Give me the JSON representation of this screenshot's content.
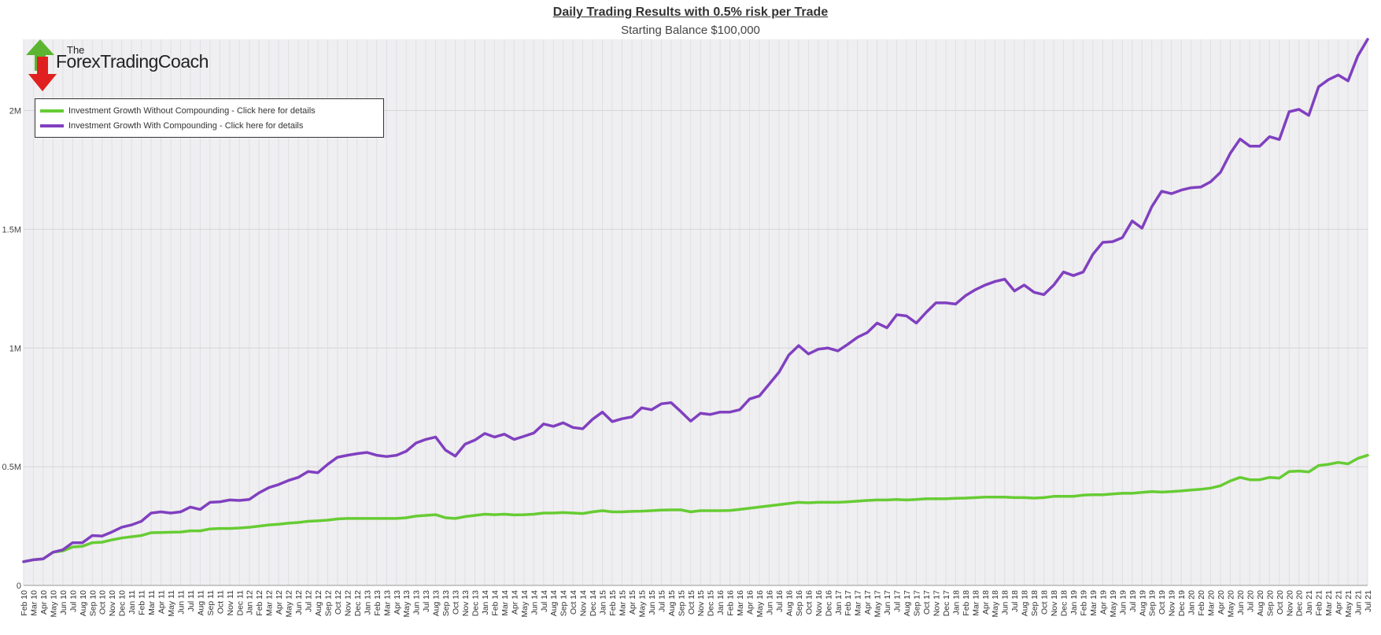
{
  "title": "Daily Trading Results with 0.5% risk per Trade",
  "subtitle": "Starting Balance $100,000",
  "logo": {
    "top_text": "The",
    "name": "ForexTradingCoach",
    "icon": "up-down-arrows-icon",
    "colors": {
      "up": "#5bb531",
      "down": "#e02020"
    }
  },
  "colors": {
    "plot_bg": "#efeef0",
    "grid": "#e0dfe2",
    "no_compound": "#66cc33",
    "compound": "#8040c0"
  },
  "chart_data": {
    "type": "line",
    "title": "Daily Trading Results with 0.5% risk per Trade",
    "subtitle": "Starting Balance $100,000",
    "xlabel": "",
    "ylabel": "",
    "ylim": [
      0,
      2300000
    ],
    "yticks": [
      {
        "value": 0,
        "label": "0"
      },
      {
        "value": 500000,
        "label": "0.5M"
      },
      {
        "value": 1000000,
        "label": "1M"
      },
      {
        "value": 1500000,
        "label": "1.5M"
      },
      {
        "value": 2000000,
        "label": "2M"
      }
    ],
    "grid": true,
    "legend_position": "top-left",
    "categories": [
      "Feb 10",
      "Mar 10",
      "Apr 10",
      "May 10",
      "Jun 10",
      "Jul 10",
      "Aug 10",
      "Sep 10",
      "Oct 10",
      "Nov 10",
      "Dec 10",
      "Jan 11",
      "Feb 11",
      "Mar 11",
      "Apr 11",
      "May 11",
      "Jun 11",
      "Jul 11",
      "Aug 11",
      "Sep 11",
      "Oct 11",
      "Nov 11",
      "Dec 11",
      "Jan 12",
      "Feb 12",
      "Mar 12",
      "Apr 12",
      "May 12",
      "Jun 12",
      "Jul 12",
      "Aug 12",
      "Sep 12",
      "Oct 12",
      "Nov 12",
      "Dec 12",
      "Jan 13",
      "Feb 13",
      "Mar 13",
      "Apr 13",
      "May 13",
      "Jun 13",
      "Jul 13",
      "Aug 13",
      "Sep 13",
      "Oct 13",
      "Nov 13",
      "Dec 13",
      "Jan 14",
      "Feb 14",
      "Mar 14",
      "Apr 14",
      "May 14",
      "Jun 14",
      "Jul 14",
      "Aug 14",
      "Sep 14",
      "Oct 14",
      "Nov 14",
      "Dec 14",
      "Jan 15",
      "Feb 15",
      "Mar 15",
      "Apr 15",
      "May 15",
      "Jun 15",
      "Jul 15",
      "Aug 15",
      "Sep 15",
      "Oct 15",
      "Nov 15",
      "Dec 15",
      "Jan 16",
      "Feb 16",
      "Mar 16",
      "Apr 16",
      "May 16",
      "Jun 16",
      "Jul 16",
      "Aug 16",
      "Sep 16",
      "Oct 16",
      "Nov 16",
      "Dec 16",
      "Jan 17",
      "Feb 17",
      "Mar 17",
      "Apr 17",
      "May 17",
      "Jun 17",
      "Jul 17",
      "Aug 17",
      "Sep 17",
      "Oct 17",
      "Nov 17",
      "Dec 17",
      "Jan 18",
      "Feb 18",
      "Mar 18",
      "Apr 18",
      "May 18",
      "Jun 18",
      "Jul 18",
      "Aug 18",
      "Sep 18",
      "Oct 18",
      "Nov 18",
      "Dec 18",
      "Jan 19",
      "Feb 19",
      "Mar 19",
      "Apr 19",
      "May 19",
      "Jun 19",
      "Jul 19",
      "Aug 19",
      "Sep 19",
      "Oct 19",
      "Nov 19",
      "Dec 19",
      "Jan 20",
      "Feb 20",
      "Mar 20",
      "Apr 20",
      "May 20",
      "Jun 20",
      "Jul 20",
      "Aug 20",
      "Sep 20",
      "Oct 20",
      "Nov 20",
      "Dec 20",
      "Jan 21",
      "Feb 21",
      "Mar 21",
      "Apr 21",
      "May 21",
      "Jun 21",
      "Jul 21"
    ],
    "series": [
      {
        "name": "Investment Growth Without Compounding - Click here for details",
        "color": "#66cc33",
        "values": [
          100000,
          108000,
          112000,
          140000,
          145000,
          162000,
          165000,
          180000,
          182000,
          192000,
          200000,
          205000,
          210000,
          222000,
          223000,
          224000,
          225000,
          230000,
          230000,
          238000,
          240000,
          240000,
          242000,
          245000,
          250000,
          255000,
          258000,
          262000,
          265000,
          270000,
          272000,
          275000,
          280000,
          282000,
          282000,
          282000,
          282000,
          282000,
          282000,
          285000,
          292000,
          295000,
          298000,
          285000,
          282000,
          290000,
          295000,
          300000,
          298000,
          300000,
          297000,
          298000,
          300000,
          305000,
          305000,
          307000,
          305000,
          303000,
          310000,
          315000,
          310000,
          310000,
          312000,
          313000,
          315000,
          317000,
          318000,
          318000,
          310000,
          315000,
          315000,
          315000,
          316000,
          320000,
          325000,
          330000,
          335000,
          340000,
          345000,
          350000,
          348000,
          350000,
          350000,
          350000,
          352000,
          355000,
          358000,
          360000,
          360000,
          362000,
          360000,
          362000,
          365000,
          365000,
          365000,
          367000,
          368000,
          370000,
          372000,
          372000,
          372000,
          370000,
          370000,
          368000,
          370000,
          375000,
          375000,
          375000,
          380000,
          382000,
          382000,
          385000,
          388000,
          388000,
          392000,
          395000,
          393000,
          395000,
          398000,
          402000,
          405000,
          410000,
          420000,
          440000,
          455000,
          445000,
          445000,
          455000,
          452000,
          480000,
          482000,
          478000,
          505000,
          510000,
          518000,
          512000,
          535000,
          548000
        ]
      },
      {
        "name": "Investment Growth With Compounding - Click here for details",
        "color": "#8040c0",
        "values": [
          100000,
          108000,
          112000,
          140000,
          150000,
          180000,
          180000,
          210000,
          208000,
          225000,
          245000,
          255000,
          270000,
          305000,
          310000,
          305000,
          310000,
          330000,
          320000,
          350000,
          352000,
          360000,
          358000,
          362000,
          390000,
          412000,
          425000,
          442000,
          455000,
          480000,
          475000,
          510000,
          540000,
          548000,
          555000,
          560000,
          548000,
          543000,
          548000,
          565000,
          600000,
          615000,
          625000,
          570000,
          545000,
          595000,
          612000,
          640000,
          625000,
          637000,
          615000,
          628000,
          642000,
          680000,
          670000,
          685000,
          665000,
          660000,
          700000,
          730000,
          690000,
          702000,
          710000,
          748000,
          740000,
          765000,
          770000,
          732000,
          692000,
          725000,
          720000,
          730000,
          730000,
          740000,
          785000,
          798000,
          848000,
          898000,
          970000,
          1010000,
          975000,
          995000,
          1000000,
          988000,
          1015000,
          1045000,
          1065000,
          1105000,
          1085000,
          1140000,
          1135000,
          1105000,
          1150000,
          1190000,
          1190000,
          1185000,
          1220000,
          1245000,
          1265000,
          1280000,
          1290000,
          1240000,
          1265000,
          1235000,
          1225000,
          1265000,
          1320000,
          1305000,
          1320000,
          1395000,
          1445000,
          1448000,
          1465000,
          1535000,
          1505000,
          1595000,
          1660000,
          1650000,
          1665000,
          1675000,
          1678000,
          1700000,
          1740000,
          1820000,
          1880000,
          1850000,
          1850000,
          1890000,
          1878000,
          1995000,
          2005000,
          1980000,
          2100000,
          2130000,
          2150000,
          2125000,
          2230000,
          2300000
        ]
      }
    ]
  }
}
